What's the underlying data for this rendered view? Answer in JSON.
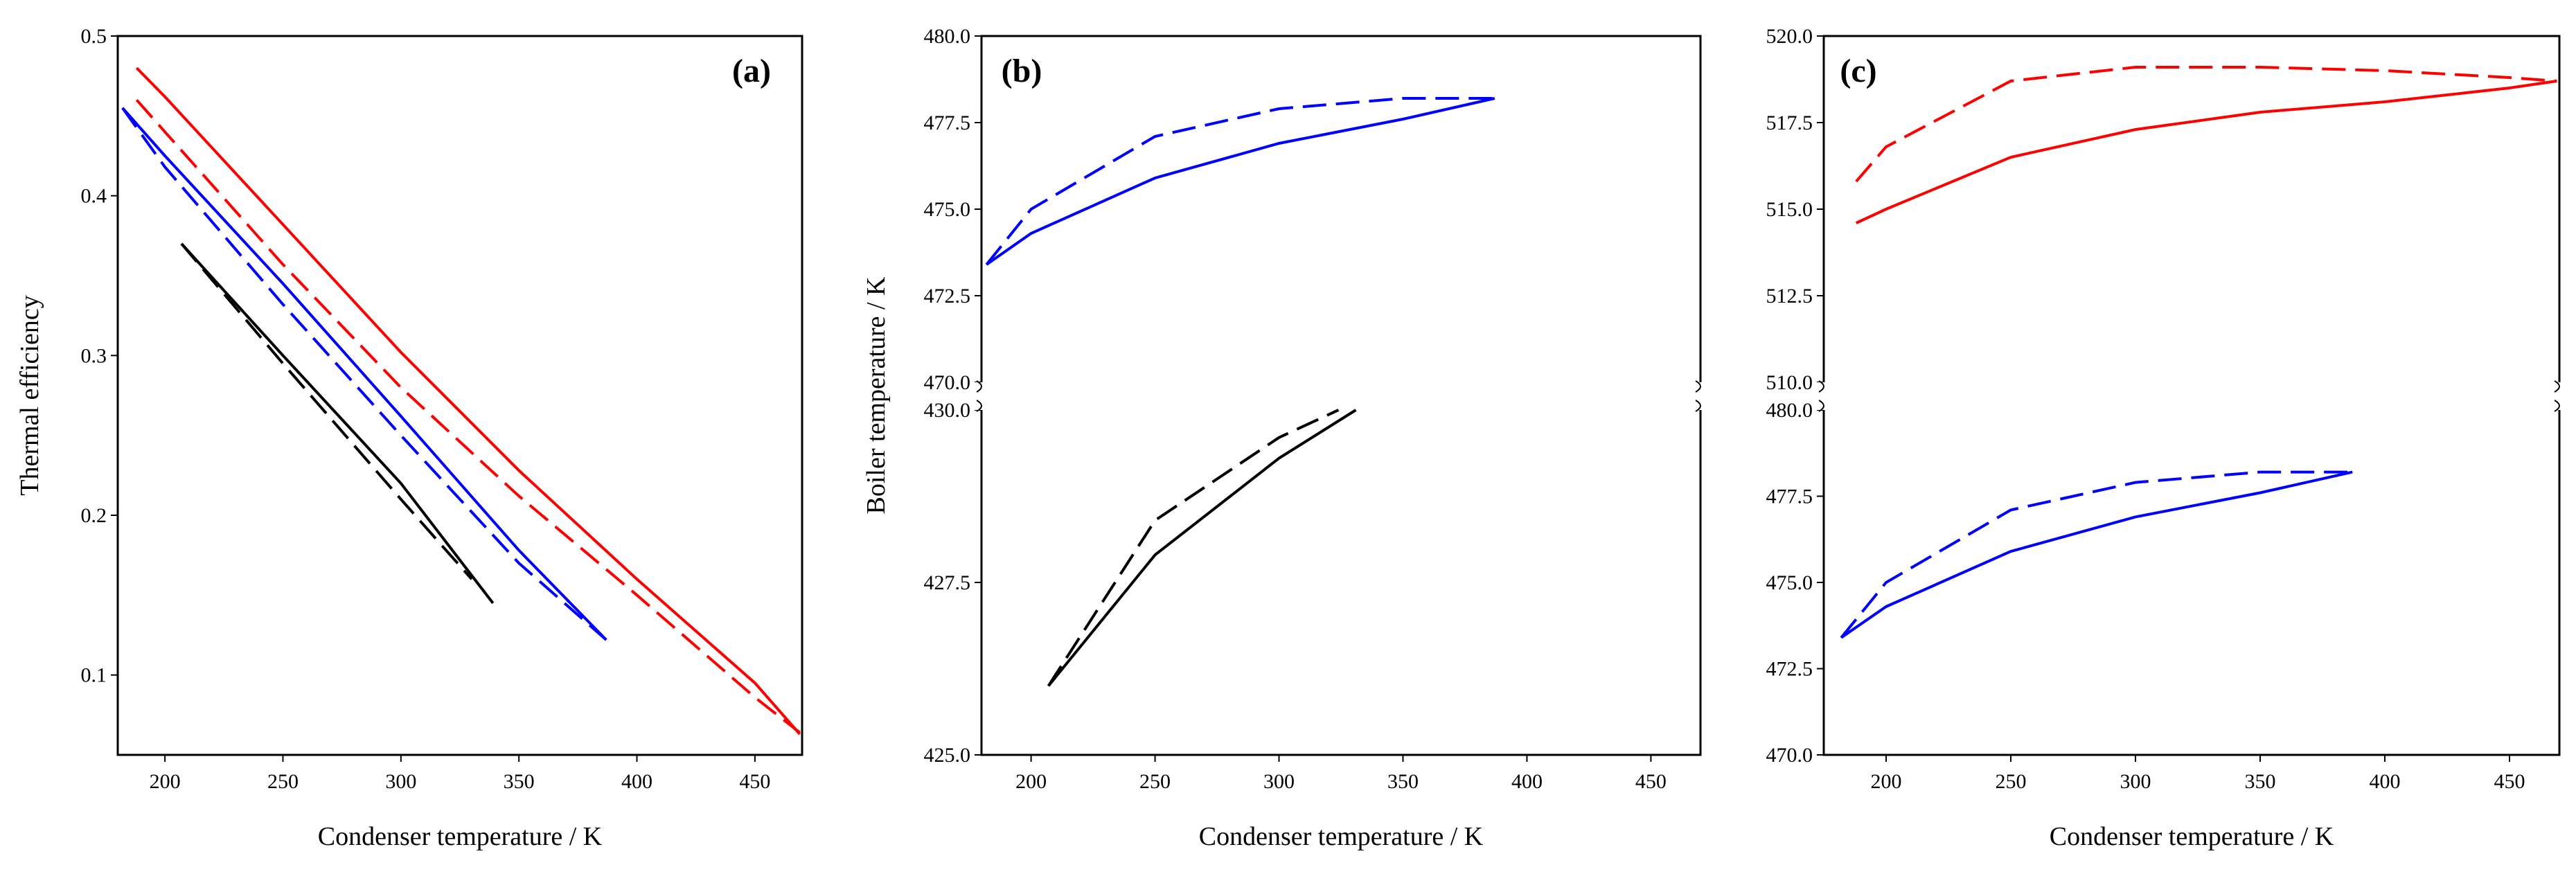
{
  "chart_data": [
    {
      "panel": "(a)",
      "type": "line",
      "xlabel": "Condenser temperature / K",
      "ylabel": "Thermal efficiency",
      "xlim": [
        180,
        470
      ],
      "ylim": [
        0.05,
        0.5
      ],
      "xticks": [
        "200",
        "250",
        "300",
        "350",
        "400",
        "450"
      ],
      "yticks": [
        "0.1",
        "0.2",
        "0.3",
        "0.4",
        "0.5"
      ],
      "series": [
        {
          "color": "#ff0000",
          "dash": "solid",
          "x": [
            188,
            200,
            250,
            300,
            350,
            400,
            450,
            469
          ],
          "y": [
            0.48,
            0.462,
            0.382,
            0.302,
            0.228,
            0.16,
            0.095,
            0.063
          ]
        },
        {
          "color": "#ff0000",
          "dash": "dashed",
          "x": [
            188,
            200,
            250,
            300,
            350,
            400,
            450,
            469
          ],
          "y": [
            0.46,
            0.44,
            0.357,
            0.28,
            0.212,
            0.15,
            0.086,
            0.064
          ]
        },
        {
          "color": "#0000ff",
          "dash": "solid",
          "x": [
            182,
            200,
            250,
            300,
            350,
            387
          ],
          "y": [
            0.455,
            0.425,
            0.345,
            0.262,
            0.178,
            0.122
          ]
        },
        {
          "color": "#0000ff",
          "dash": "dashed",
          "x": [
            182,
            200,
            250,
            300,
            350,
            387
          ],
          "y": [
            0.455,
            0.418,
            0.332,
            0.25,
            0.17,
            0.122
          ]
        },
        {
          "color": "#000000",
          "dash": "solid",
          "x": [
            207,
            250,
            300,
            339
          ],
          "y": [
            0.37,
            0.3,
            0.22,
            0.145
          ]
        },
        {
          "color": "#000000",
          "dash": "dashed",
          "x": [
            207,
            250,
            300,
            330
          ],
          "y": [
            0.37,
            0.295,
            0.21,
            0.16
          ]
        }
      ]
    },
    {
      "panel": "(b)",
      "type": "line",
      "xlabel": "Condenser temperature / K",
      "ylabel": "Boiler temperature / K",
      "xlim": [
        180,
        470
      ],
      "broken_axis": true,
      "upper_ylim": [
        470.0,
        480.0
      ],
      "lower_ylim": [
        425.0,
        430.0
      ],
      "xticks": [
        "200",
        "250",
        "300",
        "350",
        "400",
        "450"
      ],
      "upper_yticks": [
        "470.0",
        "472.5",
        "475.0",
        "477.5",
        "480.0"
      ],
      "lower_yticks": [
        "425.0",
        "427.5",
        "430.0"
      ],
      "series": [
        {
          "segment": "upper",
          "color": "#0000ff",
          "dash": "solid",
          "x": [
            182,
            200,
            250,
            300,
            350,
            387
          ],
          "y": [
            473.4,
            474.3,
            475.9,
            476.9,
            477.6,
            478.2
          ]
        },
        {
          "segment": "upper",
          "color": "#0000ff",
          "dash": "dashed",
          "x": [
            182,
            200,
            250,
            300,
            350,
            387
          ],
          "y": [
            473.4,
            475.0,
            477.1,
            477.9,
            478.2,
            478.2
          ]
        },
        {
          "segment": "lower",
          "color": "#000000",
          "dash": "solid",
          "x": [
            207,
            250,
            300,
            331
          ],
          "y": [
            426.0,
            427.9,
            429.3,
            430.0
          ]
        },
        {
          "segment": "lower",
          "color": "#000000",
          "dash": "dashed",
          "x": [
            207,
            250,
            300,
            324
          ],
          "y": [
            426.0,
            428.4,
            429.6,
            430.0
          ]
        }
      ]
    },
    {
      "panel": "(c)",
      "type": "line",
      "xlabel": "Condenser temperature / K",
      "xlim": [
        175,
        470
      ],
      "broken_axis": true,
      "upper_ylim": [
        510.0,
        520.0
      ],
      "lower_ylim": [
        470.0,
        480.0
      ],
      "xticks": [
        "200",
        "250",
        "300",
        "350",
        "400",
        "450"
      ],
      "upper_yticks": [
        "510.0",
        "512.5",
        "515.0",
        "517.5",
        "520.0"
      ],
      "lower_yticks": [
        "470.0",
        "472.5",
        "475.0",
        "477.5",
        "480.0"
      ],
      "series": [
        {
          "segment": "upper",
          "color": "#ff0000",
          "dash": "solid",
          "x": [
            188,
            200,
            250,
            300,
            350,
            400,
            450,
            469
          ],
          "y": [
            514.6,
            515.0,
            516.5,
            517.3,
            517.8,
            518.1,
            518.5,
            518.7
          ]
        },
        {
          "segment": "upper",
          "color": "#ff0000",
          "dash": "dashed",
          "x": [
            188,
            200,
            250,
            300,
            350,
            400,
            450,
            469
          ],
          "y": [
            515.8,
            516.8,
            518.7,
            519.1,
            519.1,
            519.0,
            518.8,
            518.7
          ]
        },
        {
          "segment": "lower",
          "color": "#0000ff",
          "dash": "solid",
          "x": [
            182,
            200,
            250,
            300,
            350,
            387
          ],
          "y": [
            473.4,
            474.3,
            475.9,
            476.9,
            477.6,
            478.2
          ]
        },
        {
          "segment": "lower",
          "color": "#0000ff",
          "dash": "dashed",
          "x": [
            182,
            200,
            250,
            300,
            350,
            387
          ],
          "y": [
            473.4,
            475.0,
            477.1,
            477.9,
            478.2,
            478.2
          ]
        }
      ]
    }
  ]
}
